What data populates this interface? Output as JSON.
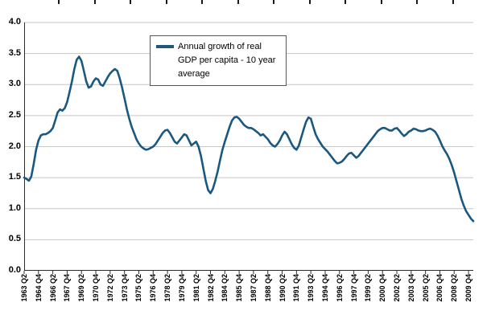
{
  "chart_data": {
    "type": "line",
    "title": "",
    "xlabel": "",
    "ylabel": "",
    "ylim": [
      0,
      4
    ],
    "ytick_step": 0.5,
    "ytick_labels": [
      "0.0",
      "0.5",
      "1.0",
      "1.5",
      "2.0",
      "2.5",
      "3.0",
      "3.5",
      "4.0"
    ],
    "grid": true,
    "legend_position": "top-left-inside",
    "legend": {
      "lines": [
        "Annual growth of real",
        "GDP per capita - 10 year",
        "average"
      ]
    },
    "line_color": "#1A587F",
    "grid_color": "#C6C6C6",
    "axis_color": "#2b2b2b",
    "categories": [
      "1963 Q2",
      "1964 Q4",
      "1966 Q2",
      "1967 Q4",
      "1969 Q2",
      "1970 Q4",
      "1972 Q2",
      "1973 Q4",
      "1975 Q2",
      "1976 Q4",
      "1978 Q2",
      "1979 Q4",
      "1981 Q2",
      "1982 Q4",
      "1984 Q2",
      "1985 Q4",
      "1987 Q2",
      "1988 Q4",
      "1990 Q2",
      "1991 Q4",
      "1993 Q2",
      "1994 Q4",
      "1996 Q2",
      "1997 Q4",
      "1999 Q2",
      "2000 Q4",
      "2002 Q2",
      "2003 Q4",
      "2005 Q2",
      "2006 Q4",
      "2008 Q2",
      "2009 Q4"
    ],
    "category_interval_quarters": 6,
    "values": [
      1.5,
      1.48,
      1.45,
      1.52,
      1.72,
      1.95,
      2.1,
      2.18,
      2.2,
      2.2,
      2.22,
      2.25,
      2.3,
      2.42,
      2.55,
      2.6,
      2.58,
      2.62,
      2.72,
      2.88,
      3.05,
      3.25,
      3.4,
      3.45,
      3.38,
      3.22,
      3.05,
      2.95,
      2.97,
      3.05,
      3.1,
      3.08,
      3.0,
      2.98,
      3.05,
      3.12,
      3.18,
      3.22,
      3.25,
      3.22,
      3.1,
      2.95,
      2.78,
      2.6,
      2.45,
      2.32,
      2.22,
      2.12,
      2.05,
      2.0,
      1.97,
      1.95,
      1.96,
      1.98,
      2.0,
      2.04,
      2.1,
      2.16,
      2.22,
      2.26,
      2.27,
      2.22,
      2.15,
      2.08,
      2.05,
      2.1,
      2.15,
      2.2,
      2.18,
      2.1,
      2.02,
      2.05,
      2.08,
      2.0,
      1.85,
      1.65,
      1.45,
      1.3,
      1.25,
      1.32,
      1.45,
      1.6,
      1.78,
      1.95,
      2.08,
      2.2,
      2.32,
      2.42,
      2.47,
      2.48,
      2.45,
      2.4,
      2.35,
      2.32,
      2.3,
      2.3,
      2.28,
      2.25,
      2.22,
      2.18,
      2.2,
      2.16,
      2.12,
      2.06,
      2.02,
      2.0,
      2.04,
      2.1,
      2.18,
      2.24,
      2.2,
      2.12,
      2.04,
      1.98,
      1.95,
      2.02,
      2.15,
      2.28,
      2.4,
      2.47,
      2.45,
      2.32,
      2.2,
      2.12,
      2.06,
      2.0,
      1.96,
      1.92,
      1.87,
      1.82,
      1.77,
      1.73,
      1.74,
      1.76,
      1.8,
      1.85,
      1.89,
      1.9,
      1.86,
      1.82,
      1.85,
      1.9,
      1.95,
      2.0,
      2.05,
      2.1,
      2.15,
      2.2,
      2.25,
      2.28,
      2.3,
      2.3,
      2.28,
      2.26,
      2.26,
      2.29,
      2.3,
      2.26,
      2.21,
      2.17,
      2.2,
      2.24,
      2.26,
      2.29,
      2.28,
      2.26,
      2.25,
      2.25,
      2.26,
      2.28,
      2.29,
      2.27,
      2.24,
      2.18,
      2.1,
      2.01,
      1.94,
      1.88,
      1.8,
      1.7,
      1.58,
      1.44,
      1.3,
      1.16,
      1.05,
      0.96,
      0.9,
      0.84,
      0.8
    ]
  }
}
